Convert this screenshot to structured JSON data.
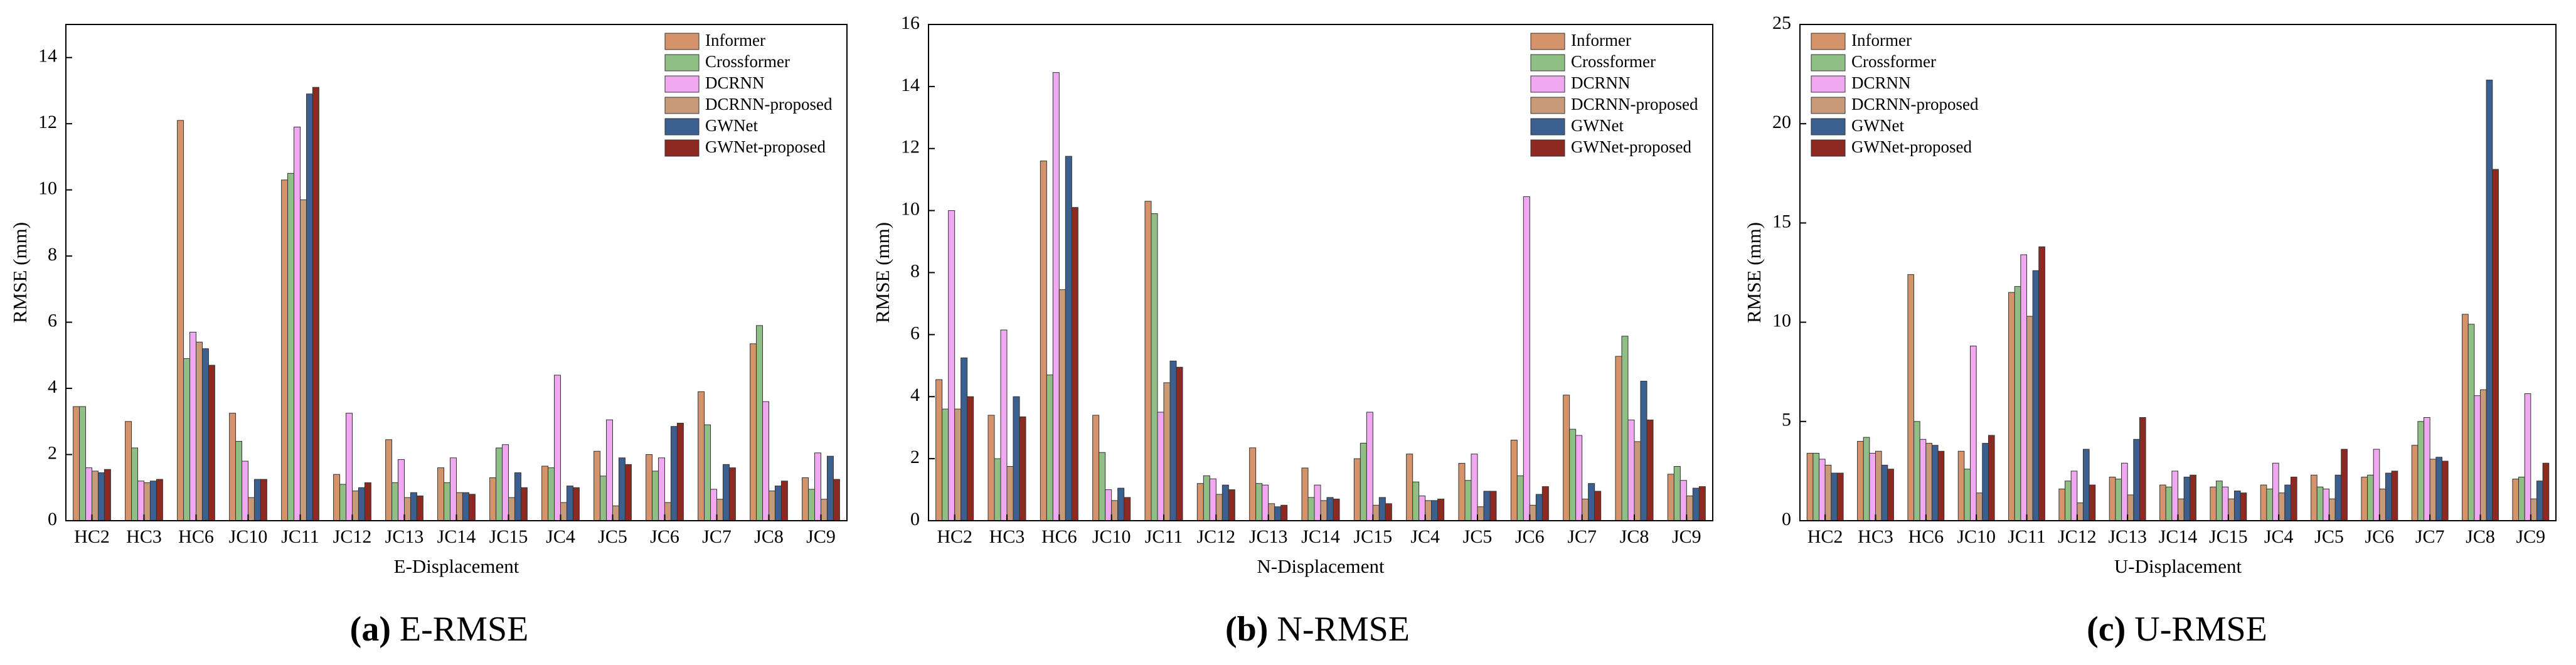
{
  "chart_data": [
    {
      "type": "bar",
      "caption_label": "(a)",
      "caption": "E-RMSE",
      "ylabel": "RMSE (mm)",
      "xlabel": "E-Displacement",
      "categories": [
        "HC2",
        "HC3",
        "HC6",
        "JC10",
        "JC11",
        "JC12",
        "JC13",
        "JC14",
        "JC15",
        "JC4",
        "JC5",
        "JC6",
        "JC7",
        "JC8",
        "JC9"
      ],
      "ylim": [
        0,
        15
      ],
      "yticks": [
        0,
        2,
        4,
        6,
        8,
        10,
        12,
        14
      ],
      "grid": false,
      "legend": "upper right",
      "series": [
        {
          "name": "Informer",
          "color": "#d4936a",
          "values": [
            3.45,
            3.0,
            12.1,
            3.25,
            10.3,
            1.4,
            2.45,
            1.6,
            1.3,
            1.65,
            2.1,
            2.0,
            3.9,
            5.35,
            1.3
          ]
        },
        {
          "name": "Crossformer",
          "color": "#8fbf85",
          "values": [
            3.45,
            2.2,
            4.9,
            2.4,
            10.5,
            1.1,
            1.15,
            1.15,
            2.2,
            1.6,
            1.35,
            1.5,
            2.9,
            5.9,
            0.95
          ]
        },
        {
          "name": "DCRNN",
          "color": "#f0a8f0",
          "values": [
            1.6,
            1.2,
            5.7,
            1.8,
            11.9,
            3.25,
            1.85,
            1.9,
            2.3,
            4.4,
            3.05,
            1.9,
            0.95,
            3.6,
            2.05
          ]
        },
        {
          "name": "DCRNN-proposed",
          "color": "#c99a78",
          "values": [
            1.5,
            1.15,
            5.4,
            0.7,
            9.7,
            0.9,
            0.7,
            0.85,
            0.7,
            0.55,
            0.45,
            0.55,
            0.65,
            0.9,
            0.65
          ]
        },
        {
          "name": "GWNet",
          "color": "#3b5f8e",
          "values": [
            1.45,
            1.2,
            5.2,
            1.25,
            12.9,
            1.0,
            0.85,
            0.85,
            1.45,
            1.05,
            1.9,
            2.85,
            1.7,
            1.05,
            1.95
          ]
        },
        {
          "name": "GWNet-proposed",
          "color": "#8c2a22",
          "values": [
            1.55,
            1.25,
            4.7,
            1.25,
            13.1,
            1.15,
            0.75,
            0.8,
            1.0,
            1.0,
            1.7,
            2.95,
            1.6,
            1.2,
            1.25
          ]
        }
      ]
    },
    {
      "type": "bar",
      "caption_label": "(b)",
      "caption": "N-RMSE",
      "ylabel": "RMSE (mm)",
      "xlabel": "N-Displacement",
      "categories": [
        "HC2",
        "HC3",
        "HC6",
        "JC10",
        "JC11",
        "JC12",
        "JC13",
        "JC14",
        "JC15",
        "JC4",
        "JC5",
        "JC6",
        "JC7",
        "JC8",
        "JC9"
      ],
      "ylim": [
        0,
        16
      ],
      "yticks": [
        0,
        2,
        4,
        6,
        8,
        10,
        12,
        14,
        16
      ],
      "grid": false,
      "legend": "upper right",
      "series": [
        {
          "name": "Informer",
          "color": "#d4936a",
          "values": [
            4.55,
            3.4,
            11.6,
            3.4,
            10.3,
            1.2,
            2.35,
            1.7,
            2.0,
            2.15,
            1.85,
            2.6,
            4.05,
            5.3,
            1.5
          ]
        },
        {
          "name": "Crossformer",
          "color": "#8fbf85",
          "values": [
            3.6,
            2.0,
            4.7,
            2.2,
            9.9,
            1.45,
            1.2,
            0.75,
            2.5,
            1.25,
            1.3,
            1.45,
            2.95,
            5.95,
            1.75
          ]
        },
        {
          "name": "DCRNN",
          "color": "#f0a8f0",
          "values": [
            10.0,
            6.15,
            14.45,
            1.0,
            3.5,
            1.35,
            1.15,
            1.15,
            3.5,
            0.8,
            2.15,
            10.45,
            2.75,
            3.25,
            1.3
          ]
        },
        {
          "name": "DCRNN-proposed",
          "color": "#c99a78",
          "values": [
            3.6,
            1.75,
            7.45,
            0.65,
            4.45,
            0.85,
            0.55,
            0.65,
            0.5,
            0.65,
            0.45,
            0.5,
            0.7,
            2.55,
            0.8
          ]
        },
        {
          "name": "GWNet",
          "color": "#3b5f8e",
          "values": [
            5.25,
            4.0,
            11.75,
            1.05,
            5.15,
            1.15,
            0.45,
            0.75,
            0.75,
            0.65,
            0.95,
            0.85,
            1.2,
            4.5,
            1.05
          ]
        },
        {
          "name": "GWNet-proposed",
          "color": "#8c2a22",
          "values": [
            4.0,
            3.35,
            10.1,
            0.75,
            4.95,
            1.0,
            0.5,
            0.7,
            0.55,
            0.7,
            0.95,
            1.1,
            0.95,
            3.25,
            1.1
          ]
        }
      ]
    },
    {
      "type": "bar",
      "caption_label": "(c)",
      "caption": "U-RMSE",
      "ylabel": "RMSE (mm)",
      "xlabel": "U-Displacement",
      "categories": [
        "HC2",
        "HC3",
        "HC6",
        "JC10",
        "JC11",
        "JC12",
        "JC13",
        "JC14",
        "JC15",
        "JC4",
        "JC5",
        "JC6",
        "JC7",
        "JC8",
        "JC9"
      ],
      "ylim": [
        0,
        25
      ],
      "yticks": [
        0,
        5,
        10,
        15,
        20,
        25
      ],
      "grid": false,
      "legend": "upper left",
      "series": [
        {
          "name": "Informer",
          "color": "#d4936a",
          "values": [
            3.4,
            4.0,
            12.4,
            3.5,
            11.5,
            1.6,
            2.2,
            1.8,
            1.7,
            1.8,
            2.3,
            2.2,
            3.8,
            10.4,
            2.1
          ]
        },
        {
          "name": "Crossformer",
          "color": "#8fbf85",
          "values": [
            3.4,
            4.2,
            5.0,
            2.6,
            11.8,
            2.0,
            2.1,
            1.7,
            2.0,
            1.6,
            1.7,
            2.3,
            5.0,
            9.9,
            2.2
          ]
        },
        {
          "name": "DCRNN",
          "color": "#f0a8f0",
          "values": [
            3.1,
            3.4,
            4.1,
            8.8,
            13.4,
            2.5,
            2.9,
            2.5,
            1.7,
            2.9,
            1.6,
            3.6,
            5.2,
            6.3,
            6.4
          ]
        },
        {
          "name": "DCRNN-proposed",
          "color": "#c99a78",
          "values": [
            2.8,
            3.5,
            3.9,
            1.4,
            10.3,
            0.9,
            1.3,
            1.1,
            1.1,
            1.4,
            1.1,
            1.6,
            3.1,
            6.6,
            1.1
          ]
        },
        {
          "name": "GWNet",
          "color": "#3b5f8e",
          "values": [
            2.4,
            2.8,
            3.8,
            3.9,
            12.6,
            3.6,
            4.1,
            2.2,
            1.5,
            1.8,
            2.3,
            2.4,
            3.2,
            22.2,
            2.0
          ]
        },
        {
          "name": "GWNet-proposed",
          "color": "#8c2a22",
          "values": [
            2.4,
            2.6,
            3.5,
            4.3,
            13.8,
            1.8,
            5.2,
            2.3,
            1.4,
            2.2,
            3.6,
            2.5,
            3.0,
            17.7,
            2.9
          ]
        }
      ]
    }
  ]
}
